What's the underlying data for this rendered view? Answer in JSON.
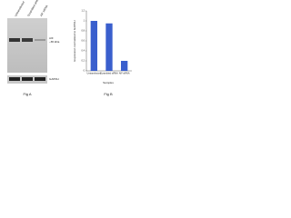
{
  "blot": {
    "lanes": [
      "Untransfected",
      "Scrambled siRNA",
      "AIF siRNA"
    ],
    "band_label": "AIF",
    "band_size": "~65 kDa",
    "control_label": "GAPDH",
    "caption": "Fig A"
  },
  "chart_data": {
    "type": "bar",
    "ylabel": "Expression normalized to GAPDH",
    "xlabel": "Samples",
    "categories": [
      "Untransfected",
      "Scrambled siRNA",
      "AIF siRNA"
    ],
    "values": [
      1,
      0.95,
      0.2
    ],
    "color": "#3a5fcd",
    "ylim": [
      0,
      1.2
    ],
    "yticks": [
      0,
      0.2,
      0.4,
      0.6,
      0.8,
      1,
      1.2
    ],
    "grid": false,
    "caption": "Fig B"
  }
}
